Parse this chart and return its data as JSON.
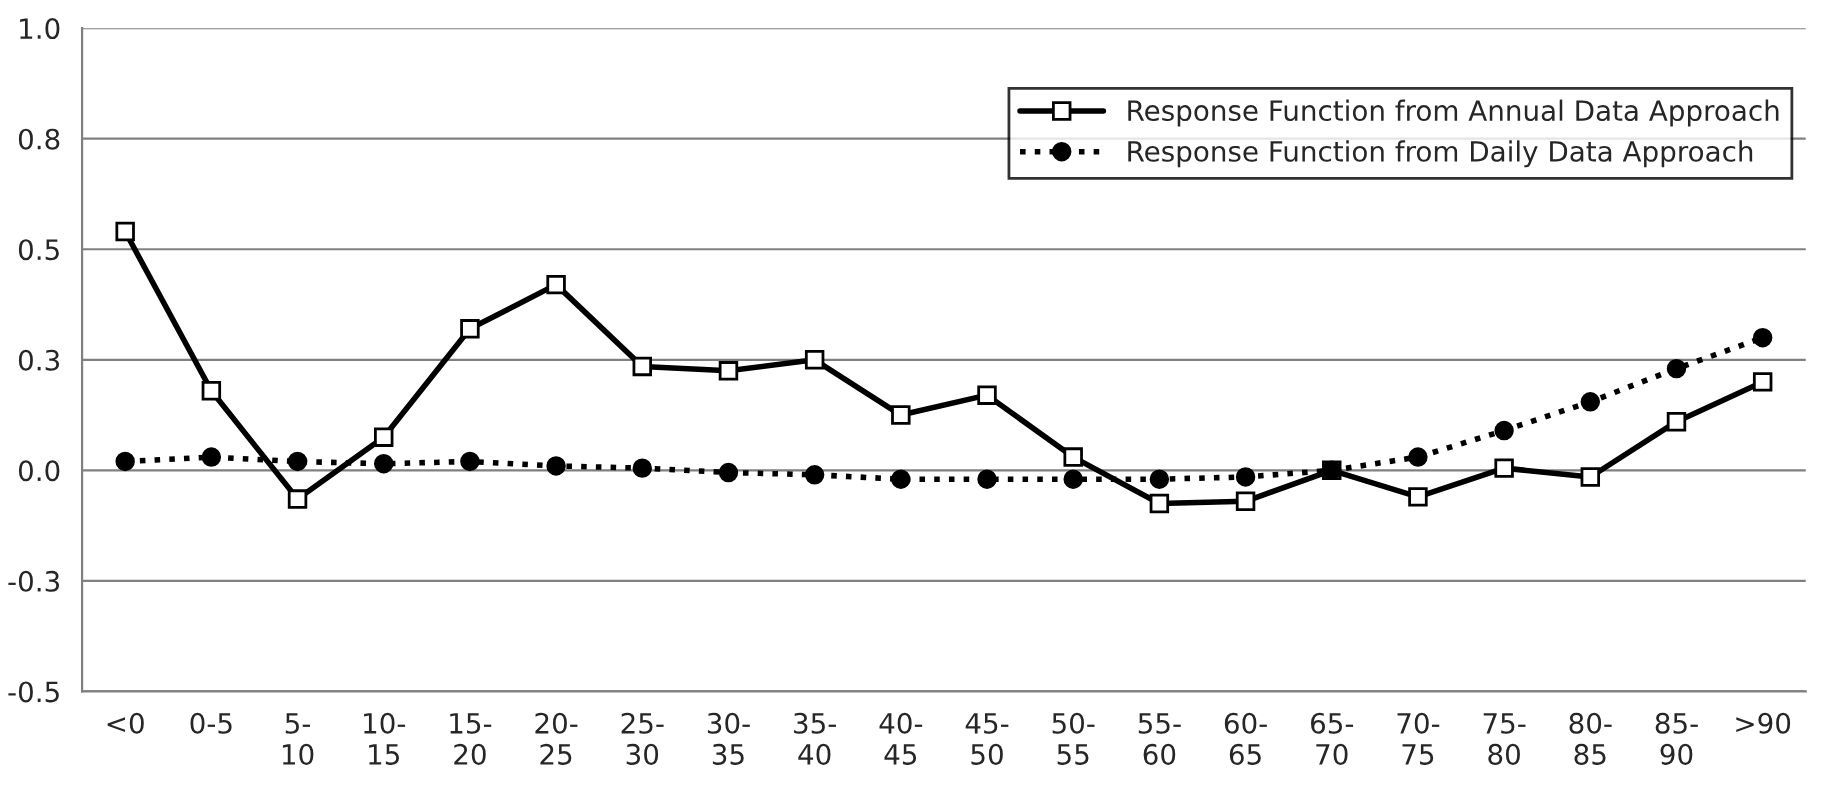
{
  "chart_data": {
    "type": "line",
    "categories": [
      "<0",
      "0-5",
      "5-\n10",
      "10-\n15",
      "15-\n20",
      "20-\n25",
      "25-\n30",
      "30-\n35",
      "35-\n40",
      "40-\n45",
      "45-\n50",
      "50-\n55",
      "55-\n60",
      "60-\n65",
      "65-\n70",
      "70-\n75",
      "75-\n80",
      "80-\n85",
      "85-\n90",
      ">90"
    ],
    "series": [
      {
        "name": "Response Function from Annual Data Approach",
        "color": "#000000",
        "marker": "square",
        "line_style": "solid",
        "values": [
          0.54,
          0.18,
          -0.065,
          0.075,
          0.32,
          0.42,
          0.235,
          0.225,
          0.25,
          0.125,
          0.17,
          0.03,
          -0.075,
          -0.07,
          0,
          -0.06,
          0.005,
          -0.015,
          0.11,
          0.2
        ]
      },
      {
        "name": "Response Function from Daily Data Approach",
        "color": "#000000",
        "marker": "circle",
        "line_style": "dotted",
        "values": [
          0.02,
          0.03,
          0.02,
          0.015,
          0.02,
          0.01,
          0.005,
          -0.005,
          -0.01,
          -0.02,
          -0.02,
          -0.02,
          -0.02,
          -0.015,
          0,
          0.03,
          0.09,
          0.155,
          0.23,
          0.3
        ]
      }
    ],
    "ylim": [
      -0.5,
      1.0
    ],
    "yticks": [
      {
        "value": -0.5,
        "label": "-0.5"
      },
      {
        "value": -0.25,
        "label": "-0.3"
      },
      {
        "value": 0,
        "label": "0.0"
      },
      {
        "value": 0.25,
        "label": "0.3"
      },
      {
        "value": 0.5,
        "label": "0.5"
      },
      {
        "value": 0.75,
        "label": "0.8"
      },
      {
        "value": 1.0,
        "label": "1.0"
      }
    ],
    "grid": "y",
    "legend": "top right"
  }
}
